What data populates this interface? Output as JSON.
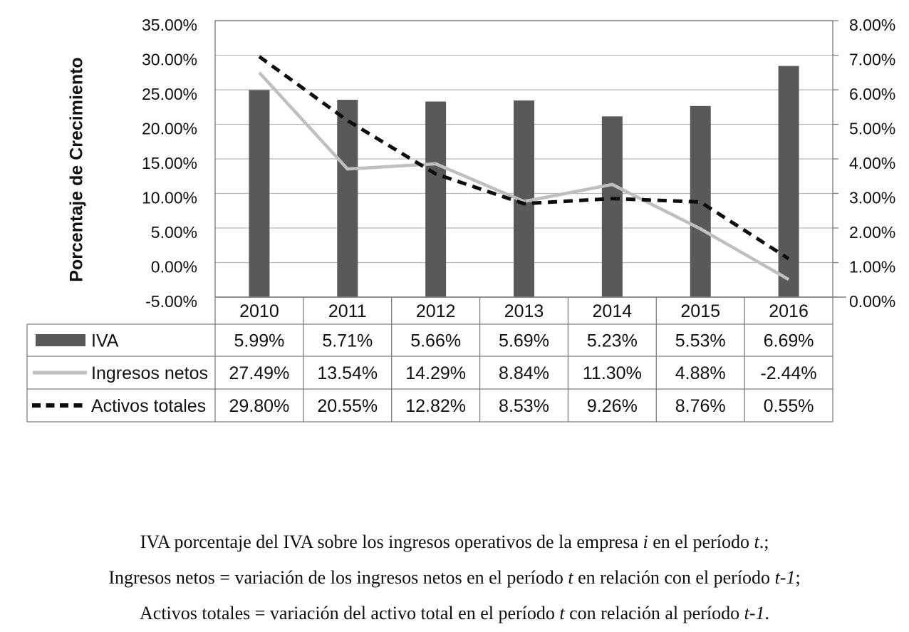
{
  "chart_data": {
    "type": "combo",
    "title": "",
    "categories": [
      "2010",
      "2011",
      "2012",
      "2013",
      "2014",
      "2015",
      "2016"
    ],
    "series": [
      {
        "name": "IVA",
        "chart_type": "bar",
        "axis": "right",
        "color": "#595959",
        "values": [
          5.99,
          5.71,
          5.66,
          5.69,
          5.23,
          5.53,
          6.69
        ],
        "display_values": [
          "5.99%",
          "5.71%",
          "5.66%",
          "5.69%",
          "5.23%",
          "5.53%",
          "6.69%"
        ]
      },
      {
        "name": "Ingresos netos",
        "chart_type": "line",
        "line_style": "solid",
        "axis": "left",
        "color": "#bfbfbf",
        "values": [
          27.49,
          13.54,
          14.29,
          8.84,
          11.3,
          4.88,
          -2.44
        ],
        "display_values": [
          "27.49%",
          "13.54%",
          "14.29%",
          "8.84%",
          "11.30%",
          "4.88%",
          "-2.44%"
        ]
      },
      {
        "name": "Activos totales",
        "chart_type": "line",
        "line_style": "dashed",
        "axis": "left",
        "color": "#0d0d0d",
        "values": [
          29.8,
          20.55,
          12.82,
          8.53,
          9.26,
          8.76,
          0.55
        ],
        "display_values": [
          "29.80%",
          "20.55%",
          "12.82%",
          "8.53%",
          "9.26%",
          "8.76%",
          "0.55%"
        ]
      }
    ],
    "left_axis": {
      "title": "Porcentaje de Crecimiento",
      "min": -5,
      "max": 35,
      "step": 5,
      "tick_labels": [
        "35.00%",
        "30.00%",
        "25.00%",
        "20.00%",
        "15.00%",
        "10.00%",
        "5.00%",
        "0.00%",
        "-5.00%"
      ]
    },
    "right_axis": {
      "min": 0,
      "max": 8,
      "step": 1,
      "tick_labels": [
        "8.00%",
        "7.00%",
        "6.00%",
        "5.00%",
        "4.00%",
        "3.00%",
        "2.00%",
        "1.00%",
        "0.00%"
      ]
    },
    "grid": true,
    "legend_position": "table-left-column"
  },
  "footnotes": [
    {
      "segments": [
        {
          "text": "IVA porcentaje del IVA sobre los ingresos operativos de la empresa ",
          "italic": false
        },
        {
          "text": "i",
          "italic": true
        },
        {
          "text": " en el período ",
          "italic": false
        },
        {
          "text": "t",
          "italic": true
        },
        {
          "text": ".;",
          "italic": false
        }
      ]
    },
    {
      "segments": [
        {
          "text": "Ingresos netos = variación de los ingresos netos en el período ",
          "italic": false
        },
        {
          "text": "t",
          "italic": true
        },
        {
          "text": " en relación con el período ",
          "italic": false
        },
        {
          "text": "t-1",
          "italic": true
        },
        {
          "text": ";",
          "italic": false
        }
      ]
    },
    {
      "segments": [
        {
          "text": "Activos totales = variación del activo total en el período ",
          "italic": false
        },
        {
          "text": "t",
          "italic": true
        },
        {
          "text": " con relación al período ",
          "italic": false
        },
        {
          "text": "t-1",
          "italic": true
        },
        {
          "text": ".",
          "italic": false
        }
      ]
    }
  ],
  "colors": {
    "bar": "#595959",
    "line_gray": "#bfbfbf",
    "line_black": "#0d0d0d",
    "gridline": "#b8b8b8",
    "border": "#7f7f7f",
    "text": "#111111",
    "background": "#ffffff"
  }
}
